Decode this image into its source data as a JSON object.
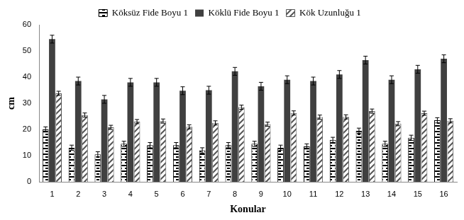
{
  "chart_data": {
    "type": "bar",
    "x_label": "Konular",
    "y_label": "cm",
    "categories": [
      "1",
      "2",
      "3",
      "4",
      "5",
      "6",
      "7",
      "8",
      "9",
      "10",
      "11",
      "12",
      "13",
      "14",
      "15",
      "16"
    ],
    "series": [
      {
        "name": "Köksüz Fide Boyu 1",
        "color": "#000000",
        "values": [
          20,
          13,
          10.5,
          14.5,
          14,
          14,
          12,
          14,
          14.5,
          13,
          13.5,
          16,
          19.5,
          14.5,
          16.8,
          23.5
        ],
        "errors": [
          1,
          1,
          1,
          1,
          1,
          1,
          1,
          1,
          1,
          1,
          1,
          1,
          1,
          1,
          1,
          1
        ]
      },
      {
        "name": "Köklü Fide Boyu 1",
        "color": "#404040",
        "values": [
          54.5,
          38.5,
          31.5,
          38,
          38,
          34.8,
          35,
          42.2,
          36.5,
          39,
          38.5,
          41,
          46.5,
          39,
          43,
          47
        ],
        "errors": [
          1.5,
          1.5,
          1.5,
          1.5,
          1.5,
          1.5,
          1.5,
          1.5,
          1.5,
          1.5,
          1.5,
          1.5,
          1.5,
          1.5,
          1.5,
          1.5
        ]
      },
      {
        "name": "Kök Uzunluğu 1",
        "color": "#555555",
        "values": [
          33.8,
          25.5,
          20.8,
          23,
          23.2,
          21,
          22.5,
          28.5,
          22,
          26.3,
          24.7,
          24.8,
          27,
          22.2,
          26.2,
          23.3
        ],
        "errors": [
          0.8,
          0.8,
          0.8,
          0.8,
          0.8,
          0.8,
          0.8,
          0.8,
          0.8,
          0.8,
          0.8,
          0.8,
          0.8,
          0.8,
          0.8,
          0.8
        ]
      }
    ],
    "ylim": [
      0,
      60
    ],
    "yticks": [
      0,
      10,
      20,
      30,
      40,
      50,
      60
    ],
    "grid": false,
    "legend": "top"
  }
}
